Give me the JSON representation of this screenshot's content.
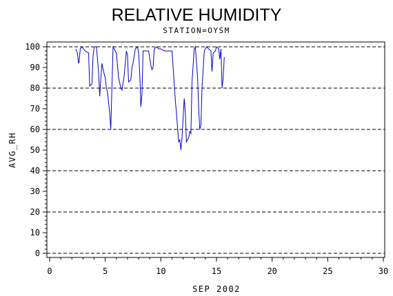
{
  "chart_data": {
    "type": "line",
    "title": "RELATIVE HUMIDITY",
    "subtitle": "STATION=OYSM",
    "xlabel": "SEP 2002",
    "ylabel": "AVG_RH",
    "xlim": [
      0,
      30
    ],
    "ylim": [
      0,
      100
    ],
    "x_ticks": [
      0,
      5,
      10,
      15,
      20,
      25,
      30
    ],
    "y_ticks": [
      0,
      10,
      20,
      30,
      40,
      50,
      60,
      70,
      80,
      90,
      100
    ],
    "reference_lines": [
      0,
      20,
      40,
      60,
      80,
      100
    ],
    "grid": false,
    "legend": "none",
    "line_color": "#0000cc",
    "series": [
      {
        "x": [
          2.35,
          2.5,
          2.6,
          2.65,
          2.75,
          2.9,
          3.2,
          3.5,
          3.6,
          3.8,
          3.9,
          4.0,
          4.2,
          4.4,
          4.5,
          4.7,
          4.85,
          5.0,
          5.1,
          5.2,
          5.4,
          5.5,
          5.6,
          5.7,
          5.8,
          6.0,
          6.2,
          6.4,
          6.5,
          6.7,
          6.9,
          7.0,
          7.1,
          7.3,
          7.4,
          7.5,
          7.7,
          7.9,
          8.0,
          8.1,
          8.2,
          8.3,
          8.4,
          8.5,
          8.7,
          8.9,
          9.1,
          9.2,
          9.3,
          9.4,
          9.6,
          9.8,
          10.0,
          10.3,
          10.6,
          11.0,
          11.3,
          11.4,
          11.6,
          11.7,
          11.8,
          11.9,
          12.1,
          12.2,
          12.3,
          12.5,
          12.6,
          12.7,
          12.8,
          13.0,
          13.1,
          13.3,
          13.4,
          13.5,
          13.6,
          13.7,
          13.9,
          14.1,
          14.3,
          14.5,
          14.6,
          14.7,
          14.9,
          15.0,
          15.2,
          15.3,
          15.4,
          15.5,
          15.6,
          15.7
        ],
        "values": [
          99,
          97,
          92,
          93,
          99,
          100,
          98,
          97,
          81,
          82,
          95,
          100,
          100,
          88,
          76,
          92,
          88,
          85,
          80,
          78,
          68,
          60,
          80,
          100,
          99,
          97,
          85,
          80,
          79,
          86,
          98,
          96,
          83,
          84,
          90,
          92,
          99,
          100,
          97,
          87,
          71,
          77,
          98,
          98,
          98,
          98,
          91,
          89,
          90,
          99,
          100,
          99,
          99,
          98,
          98,
          98,
          74,
          68,
          54,
          55,
          50,
          56,
          75,
          68,
          54,
          56,
          59,
          58,
          83,
          99,
          100,
          85,
          70,
          60,
          62,
          80,
          98,
          100,
          99,
          98,
          88,
          97,
          98,
          100,
          99,
          94,
          99,
          80,
          85,
          95
        ]
      }
    ]
  }
}
